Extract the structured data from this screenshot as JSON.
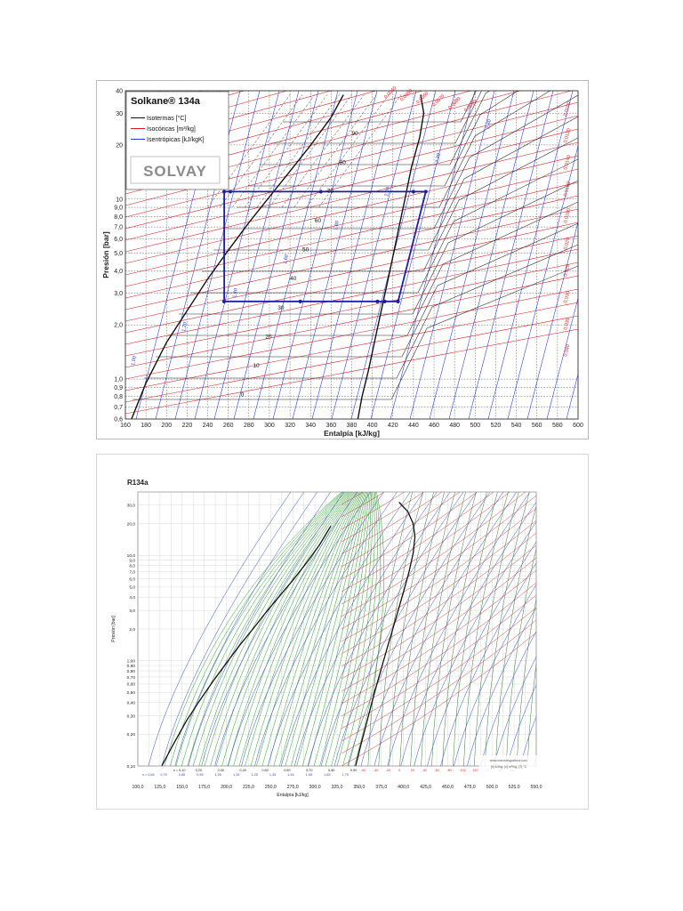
{
  "chart_data": [
    {
      "type": "line",
      "title": "Solkane® 134a",
      "brand": "SOLVAY",
      "xlabel": "Entalpía [kJ/kg]",
      "ylabel": "Presión [bar]",
      "xlim": [
        160,
        600
      ],
      "ylim": [
        0.6,
        40
      ],
      "y_scale": "log",
      "x_ticks": [
        160,
        180,
        200,
        220,
        240,
        260,
        280,
        300,
        320,
        340,
        360,
        380,
        400,
        420,
        440,
        460,
        480,
        500,
        520,
        540,
        560,
        580,
        600
      ],
      "y_ticks": [
        {
          "v": 0.6,
          "label": "0,6"
        },
        {
          "v": 0.7,
          "label": "0,7"
        },
        {
          "v": 0.8,
          "label": "0,8"
        },
        {
          "v": 0.9,
          "label": "0,9"
        },
        {
          "v": 1.0,
          "label": "1,0"
        },
        {
          "v": 2.0,
          "label": "2,0"
        },
        {
          "v": 3.0,
          "label": "3,0"
        },
        {
          "v": 4.0,
          "label": "4,0"
        },
        {
          "v": 5.0,
          "label": "5,0"
        },
        {
          "v": 6.0,
          "label": "6,0"
        },
        {
          "v": 7.0,
          "label": "7,0"
        },
        {
          "v": 8.0,
          "label": "8,0"
        },
        {
          "v": 9.0,
          "label": "9,0"
        },
        {
          "v": 10,
          "label": "10"
        },
        {
          "v": 20,
          "label": "20"
        },
        {
          "v": 30,
          "label": "30"
        },
        {
          "v": 40,
          "label": "40"
        }
      ],
      "legend": [
        "Isotermas [°C]",
        "Isocóricas [m³/kg]",
        "Isentrópicas [kJ/kgK]"
      ],
      "legend_placement": "top-left",
      "grid": true,
      "saturation_liquid": {
        "x": [
          166,
          180,
          200,
          220,
          240,
          260,
          280,
          300,
          320,
          340,
          360,
          372
        ],
        "y": [
          0.6,
          0.95,
          1.6,
          2.4,
          3.6,
          5.2,
          7.4,
          10.3,
          14.3,
          19.9,
          28.5,
          38
        ]
      },
      "saturation_vapor": {
        "x": [
          386,
          390,
          396,
          402,
          408,
          414,
          420,
          426,
          432,
          438,
          446,
          450,
          447
        ],
        "y": [
          0.6,
          0.8,
          1.1,
          1.6,
          2.3,
          3.3,
          4.8,
          7.0,
          10.2,
          15,
          22,
          30,
          38
        ]
      },
      "cycle": {
        "x": [
          256,
          256,
          425,
          452,
          440,
          262,
          256
        ],
        "y": [
          2.7,
          11,
          2.7,
          11,
          11,
          11,
          2.7
        ]
      },
      "cycle_points": {
        "x": [
          256,
          262,
          350,
          440,
          452,
          425,
          412,
          405,
          330,
          256
        ],
        "y": [
          11,
          11,
          11,
          11,
          11,
          2.7,
          2.7,
          2.7,
          2.7,
          2.7
        ]
      },
      "isotherm_labels": [
        "0",
        "10",
        "20",
        "30",
        "40",
        "50",
        "60",
        "70",
        "80",
        "90"
      ],
      "isochore_labels": [
        "0,0040",
        "0,0050",
        "0,0060",
        "0,0070",
        "0,0080",
        "0,0090",
        "0,0100",
        "0,0120",
        "0,0140",
        "0,0160",
        "0,0180",
        "0,020",
        "0,025",
        "0,030",
        "0,035",
        "0,040"
      ],
      "isentrope_labels": [
        "1,00",
        "1,20",
        "1,40",
        "1,60",
        "1,80",
        "2,00",
        "2,20",
        "2,40"
      ]
    },
    {
      "type": "line",
      "title": "R134a",
      "xlabel": "Entalpía [kJ/kg]",
      "ylabel": "Presión [bar]",
      "xlim": [
        100,
        550
      ],
      "ylim": [
        0.1,
        40
      ],
      "y_scale": "log",
      "x_ticks": [
        "100,0",
        "125,0",
        "150,0",
        "175,0",
        "200,0",
        "225,0",
        "250,0",
        "275,0",
        "300,0",
        "325,0",
        "350,0",
        "375,0",
        "400,0",
        "425,0",
        "450,0",
        "475,0",
        "500,0",
        "525,0",
        "550,0"
      ],
      "y_ticks": [
        {
          "v": 0.1,
          "label": "0,10"
        },
        {
          "v": 0.2,
          "label": "0,20"
        },
        {
          "v": 0.3,
          "label": "0,30"
        },
        {
          "v": 0.4,
          "label": "0,40"
        },
        {
          "v": 0.5,
          "label": "0,50"
        },
        {
          "v": 0.6,
          "label": "0,60"
        },
        {
          "v": 0.7,
          "label": "0,70"
        },
        {
          "v": 0.8,
          "label": "0,80"
        },
        {
          "v": 0.9,
          "label": "0,90"
        },
        {
          "v": 1.0,
          "label": "1,00"
        },
        {
          "v": 2.0,
          "label": "2,0"
        },
        {
          "v": 3.0,
          "label": "3,0"
        },
        {
          "v": 4.0,
          "label": "4,0"
        },
        {
          "v": 5.0,
          "label": "5,0"
        },
        {
          "v": 6.0,
          "label": "6,0"
        },
        {
          "v": 7.0,
          "label": "7,0"
        },
        {
          "v": 8.0,
          "label": "8,0"
        },
        {
          "v": 9.0,
          "label": "9,0"
        },
        {
          "v": 10,
          "label": "10,0"
        },
        {
          "v": 20,
          "label": "20,0"
        },
        {
          "v": 30,
          "label": "30,0"
        }
      ],
      "quality_labels": [
        "x = 0,10",
        "0,20",
        "0,30",
        "0,40",
        "0,50",
        "0,60",
        "0,70",
        "0,80",
        "0,90"
      ],
      "entropy_labels": [
        "s = 0,65",
        "0,75",
        "0,85",
        "0,95",
        "1,05",
        "1,15",
        "1,25",
        "1,35",
        "1,45",
        "1,55",
        "1,65",
        "1,75"
      ],
      "temp_labels": [
        "-60",
        "-40",
        "-20",
        "0",
        "20",
        "40",
        "60",
        "80",
        "100",
        "120",
        "140",
        "160",
        "180"
      ],
      "site": "www.marciofsgraficos.com",
      "units_note": "[h] kJ/kg; [v] m³/kg; [T] °C",
      "saturation_liquid": {
        "x": [
          127,
          140,
          155,
          170,
          185,
          200,
          215,
          230,
          245,
          260,
          275,
          290,
          305,
          318
        ],
        "y": [
          0.1,
          0.16,
          0.27,
          0.42,
          0.64,
          0.95,
          1.4,
          2.0,
          2.9,
          4.1,
          5.8,
          8.4,
          12.5,
          19
        ]
      },
      "saturation_vapor": {
        "x": [
          346,
          352,
          358,
          364,
          370,
          376,
          382,
          388,
          394,
          400,
          406,
          411,
          413,
          411,
          405,
          395
        ],
        "y": [
          0.1,
          0.16,
          0.25,
          0.39,
          0.6,
          0.9,
          1.35,
          2.0,
          3.0,
          4.5,
          6.8,
          10.5,
          15,
          20,
          26,
          32
        ]
      }
    }
  ]
}
